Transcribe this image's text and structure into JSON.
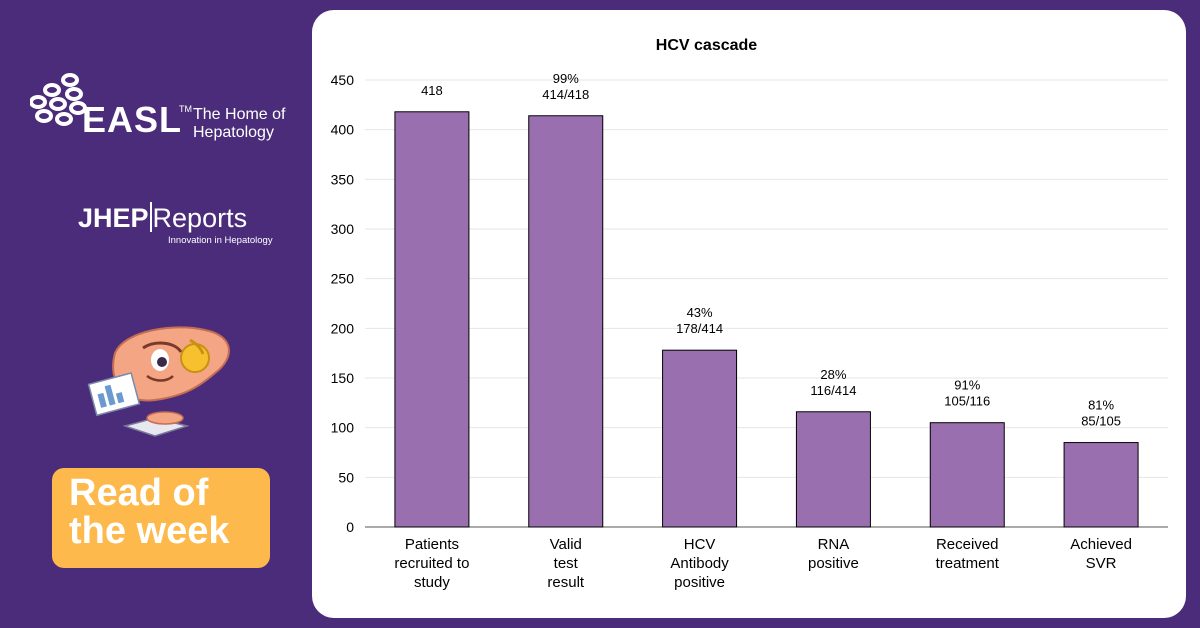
{
  "sidebar": {
    "easl_name": "EASL",
    "easl_tm": "TM",
    "easl_tagline_line1": "The Home of",
    "easl_tagline_line2": "Hepatology",
    "journal_left": "JHEP",
    "journal_right": "Reports",
    "journal_tagline": "Innovation in Hepatology",
    "badge_line1": "Read of",
    "badge_line2": "the week"
  },
  "colors": {
    "background": "#4a2c7a",
    "bar": "#9a6fb0",
    "badge": "#fdb94b"
  },
  "chart_data": {
    "type": "bar",
    "title": "HCV cascade",
    "categories": [
      [
        "Patients",
        "recruited to",
        "study"
      ],
      [
        "Valid",
        "test",
        "result"
      ],
      [
        "HCV",
        "Antibody",
        "positive"
      ],
      [
        "RNA",
        "positive"
      ],
      [
        "Received",
        "treatment"
      ],
      [
        "Achieved",
        "SVR"
      ]
    ],
    "values": [
      418,
      414,
      178,
      116,
      105,
      85
    ],
    "labels": [
      [
        "418"
      ],
      [
        "99%",
        "414/418"
      ],
      [
        "43%",
        "178/414"
      ],
      [
        "28%",
        "116/414"
      ],
      [
        "91%",
        "105/116"
      ],
      [
        "81%",
        "85/105"
      ]
    ],
    "ylim": [
      0,
      450
    ],
    "yticks": [
      0,
      50,
      100,
      150,
      200,
      250,
      300,
      350,
      400,
      450
    ],
    "grid": true
  }
}
